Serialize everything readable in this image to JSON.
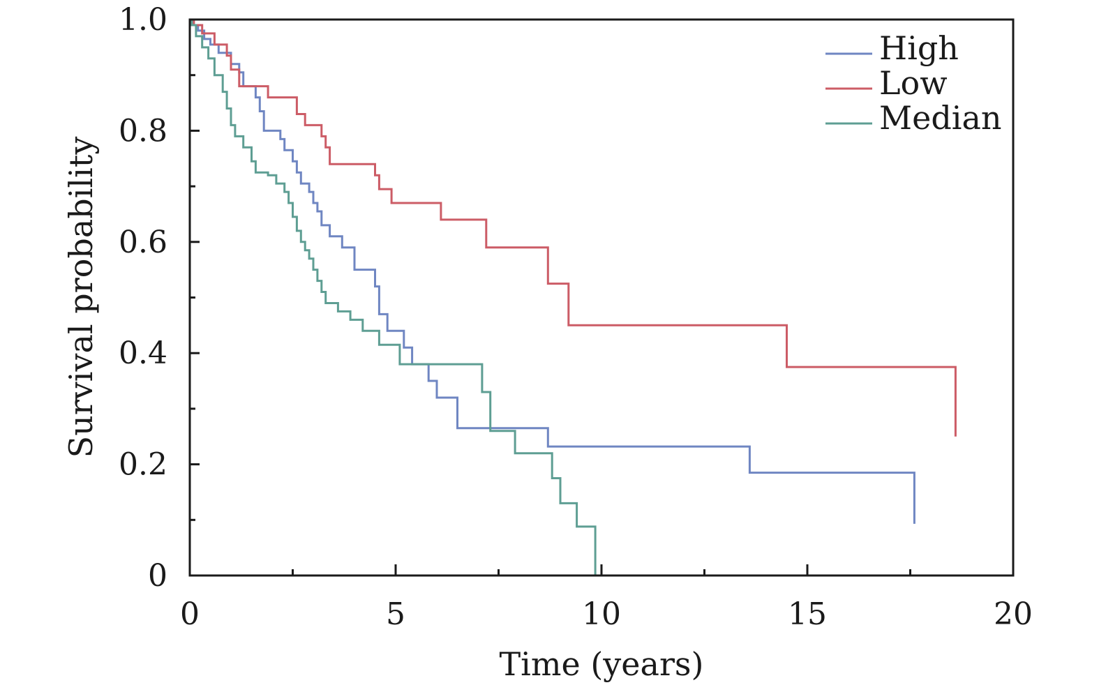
{
  "chart_data": {
    "type": "line",
    "xlabel": "Time (years)",
    "ylabel": "Survival probability",
    "xlim": [
      0,
      20
    ],
    "ylim": [
      0,
      1
    ],
    "xticks": [
      0,
      5,
      10,
      15,
      20
    ],
    "xtick_labels": [
      "0",
      "5",
      "10",
      "15",
      "20"
    ],
    "yticks": [
      0,
      0.2,
      0.4,
      0.6,
      0.8,
      1.0
    ],
    "ytick_labels": [
      "0",
      "0.2",
      "0.4",
      "0.6",
      "0.8",
      "1.0"
    ],
    "grid": false,
    "legend": "top-right",
    "step": true,
    "series": [
      {
        "name": "High",
        "color": "#6f86c2",
        "x": [
          0,
          0.05,
          0.2,
          0.35,
          0.5,
          0.7,
          1.0,
          1.2,
          1.3,
          1.6,
          1.7,
          1.8,
          2.2,
          2.3,
          2.5,
          2.6,
          2.7,
          2.9,
          3.0,
          3.1,
          3.2,
          3.4,
          3.7,
          4.0,
          4.5,
          4.6,
          4.8,
          5.2,
          5.4,
          5.8,
          6.0,
          6.5,
          8.7,
          13.6,
          17.6
        ],
        "y": [
          1.0,
          0.99,
          0.98,
          0.965,
          0.955,
          0.94,
          0.92,
          0.905,
          0.88,
          0.86,
          0.835,
          0.8,
          0.785,
          0.765,
          0.745,
          0.725,
          0.705,
          0.69,
          0.67,
          0.655,
          0.63,
          0.61,
          0.59,
          0.55,
          0.52,
          0.47,
          0.44,
          0.41,
          0.38,
          0.35,
          0.32,
          0.265,
          0.232,
          0.185,
          0.093
        ]
      },
      {
        "name": "Low",
        "color": "#cc5c66",
        "x": [
          0,
          0.1,
          0.3,
          0.6,
          0.9,
          1.0,
          1.2,
          1.9,
          2.6,
          2.8,
          3.2,
          3.3,
          3.4,
          4.5,
          4.6,
          4.9,
          6.1,
          7.2,
          8.7,
          9.2,
          14.5,
          18.6
        ],
        "y": [
          1.0,
          0.99,
          0.975,
          0.955,
          0.935,
          0.91,
          0.88,
          0.86,
          0.83,
          0.81,
          0.79,
          0.77,
          0.74,
          0.72,
          0.695,
          0.67,
          0.64,
          0.59,
          0.525,
          0.45,
          0.375,
          0.25
        ]
      },
      {
        "name": "Median",
        "color": "#5e9e93",
        "x": [
          0,
          0.05,
          0.15,
          0.3,
          0.45,
          0.6,
          0.8,
          0.9,
          1.0,
          1.1,
          1.3,
          1.5,
          1.6,
          1.9,
          2.1,
          2.3,
          2.4,
          2.5,
          2.6,
          2.7,
          2.8,
          2.9,
          3.0,
          3.1,
          3.2,
          3.3,
          3.6,
          3.9,
          4.2,
          4.6,
          5.1,
          7.1,
          7.3,
          7.9,
          8.8,
          9.0,
          9.4
        ],
        "y": [
          1.0,
          0.99,
          0.97,
          0.95,
          0.93,
          0.9,
          0.87,
          0.84,
          0.81,
          0.79,
          0.77,
          0.745,
          0.725,
          0.72,
          0.705,
          0.69,
          0.67,
          0.645,
          0.62,
          0.6,
          0.585,
          0.57,
          0.55,
          0.53,
          0.51,
          0.49,
          0.475,
          0.46,
          0.44,
          0.415,
          0.38,
          0.33,
          0.26,
          0.22,
          0.175,
          0.13,
          0.088
        ]
      }
    ],
    "median_end": {
      "x": 9.85
    }
  }
}
